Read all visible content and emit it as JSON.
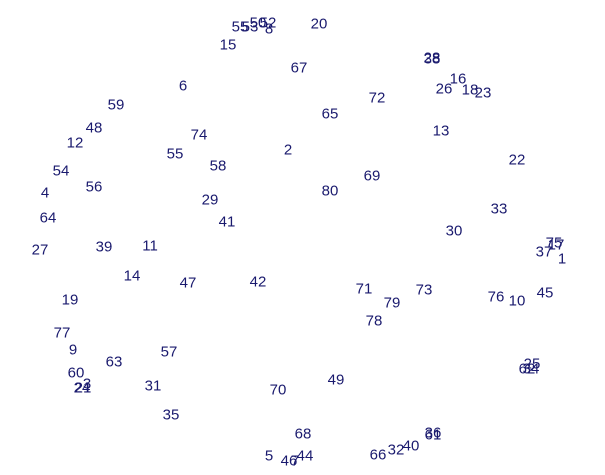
{
  "text_color": "#1a1a6e",
  "labels": [
    {
      "text": "55"
    },
    {
      "text": "53"
    },
    {
      "text": "50"
    },
    {
      "text": "52"
    },
    {
      "text": "8"
    },
    {
      "text": "20"
    },
    {
      "text": "15"
    },
    {
      "text": "67"
    },
    {
      "text": "28"
    },
    {
      "text": "38"
    },
    {
      "text": "16"
    },
    {
      "text": "26"
    },
    {
      "text": "18"
    },
    {
      "text": "23"
    },
    {
      "text": "72"
    },
    {
      "text": "6"
    },
    {
      "text": "59"
    },
    {
      "text": "65"
    },
    {
      "text": "13"
    },
    {
      "text": "48"
    },
    {
      "text": "74"
    },
    {
      "text": "12"
    },
    {
      "text": "2"
    },
    {
      "text": "55"
    },
    {
      "text": "22"
    },
    {
      "text": "58"
    },
    {
      "text": "69"
    },
    {
      "text": "54"
    },
    {
      "text": "56"
    },
    {
      "text": "4"
    },
    {
      "text": "80"
    },
    {
      "text": "29"
    },
    {
      "text": "33"
    },
    {
      "text": "64"
    },
    {
      "text": "41"
    },
    {
      "text": "30"
    },
    {
      "text": "75"
    },
    {
      "text": "17"
    },
    {
      "text": "37"
    },
    {
      "text": "1"
    },
    {
      "text": "27"
    },
    {
      "text": "39"
    },
    {
      "text": "11"
    },
    {
      "text": "14"
    },
    {
      "text": "47"
    },
    {
      "text": "42"
    },
    {
      "text": "71"
    },
    {
      "text": "73"
    },
    {
      "text": "79"
    },
    {
      "text": "76"
    },
    {
      "text": "10"
    },
    {
      "text": "45"
    },
    {
      "text": "19"
    },
    {
      "text": "78"
    },
    {
      "text": "77"
    },
    {
      "text": "9"
    },
    {
      "text": "57"
    },
    {
      "text": "63"
    },
    {
      "text": "25"
    },
    {
      "text": "62"
    },
    {
      "text": "34"
    },
    {
      "text": "60"
    },
    {
      "text": "3"
    },
    {
      "text": "24"
    },
    {
      "text": "21"
    },
    {
      "text": "31"
    },
    {
      "text": "49"
    },
    {
      "text": "70"
    },
    {
      "text": "35"
    },
    {
      "text": "68"
    },
    {
      "text": "36"
    },
    {
      "text": "61"
    },
    {
      "text": "40"
    },
    {
      "text": "32"
    },
    {
      "text": "66"
    },
    {
      "text": "5"
    },
    {
      "text": "46"
    },
    {
      "text": "7"
    },
    {
      "text": "44"
    }
  ]
}
